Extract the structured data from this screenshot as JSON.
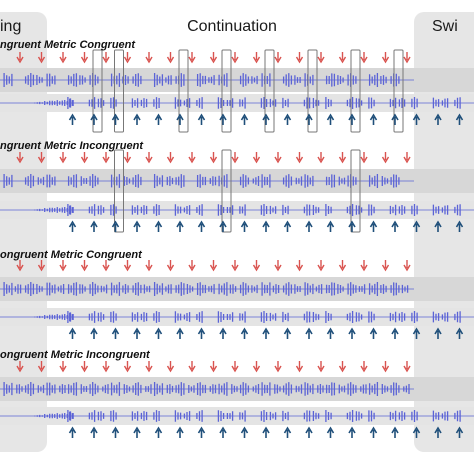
{
  "phases": [
    {
      "key": "left",
      "label": "ing"
    },
    {
      "key": "middle",
      "label": "Continuation"
    },
    {
      "key": "right",
      "label": "Swi"
    }
  ],
  "conditions": [
    {
      "title": "ngruent Metric Congruent",
      "boxed_beats_top": [
        6,
        7,
        10,
        12,
        14,
        16,
        18,
        20,
        22,
        23
      ],
      "boxed_beats_bottom": [
        2,
        4,
        6,
        8,
        9,
        12,
        14,
        16,
        18,
        20
      ]
    },
    {
      "title": "ngruent Metric Incongruent",
      "boxed_beats_top": [
        7,
        12,
        18
      ],
      "boxed_beats_bottom": [
        4,
        7,
        12,
        16
      ]
    },
    {
      "title": "ongruent Metric Congruent",
      "boxed_beats_top": [],
      "boxed_beats_bottom": []
    },
    {
      "title": "ongruent Metric Incongruent",
      "boxed_beats_top": [],
      "boxed_beats_bottom": []
    }
  ],
  "colors": {
    "waveform": "#5b63d6",
    "red_arrow": "#d9534f",
    "blue_arrow": "#1f4f7a",
    "band": "#d7d7d7",
    "phase_panel": "#e6e6e6",
    "box": "#777777"
  },
  "icons": {
    "red_marker": "red-down-arrow-icon",
    "blue_marker": "blue-up-arrow-icon"
  }
}
